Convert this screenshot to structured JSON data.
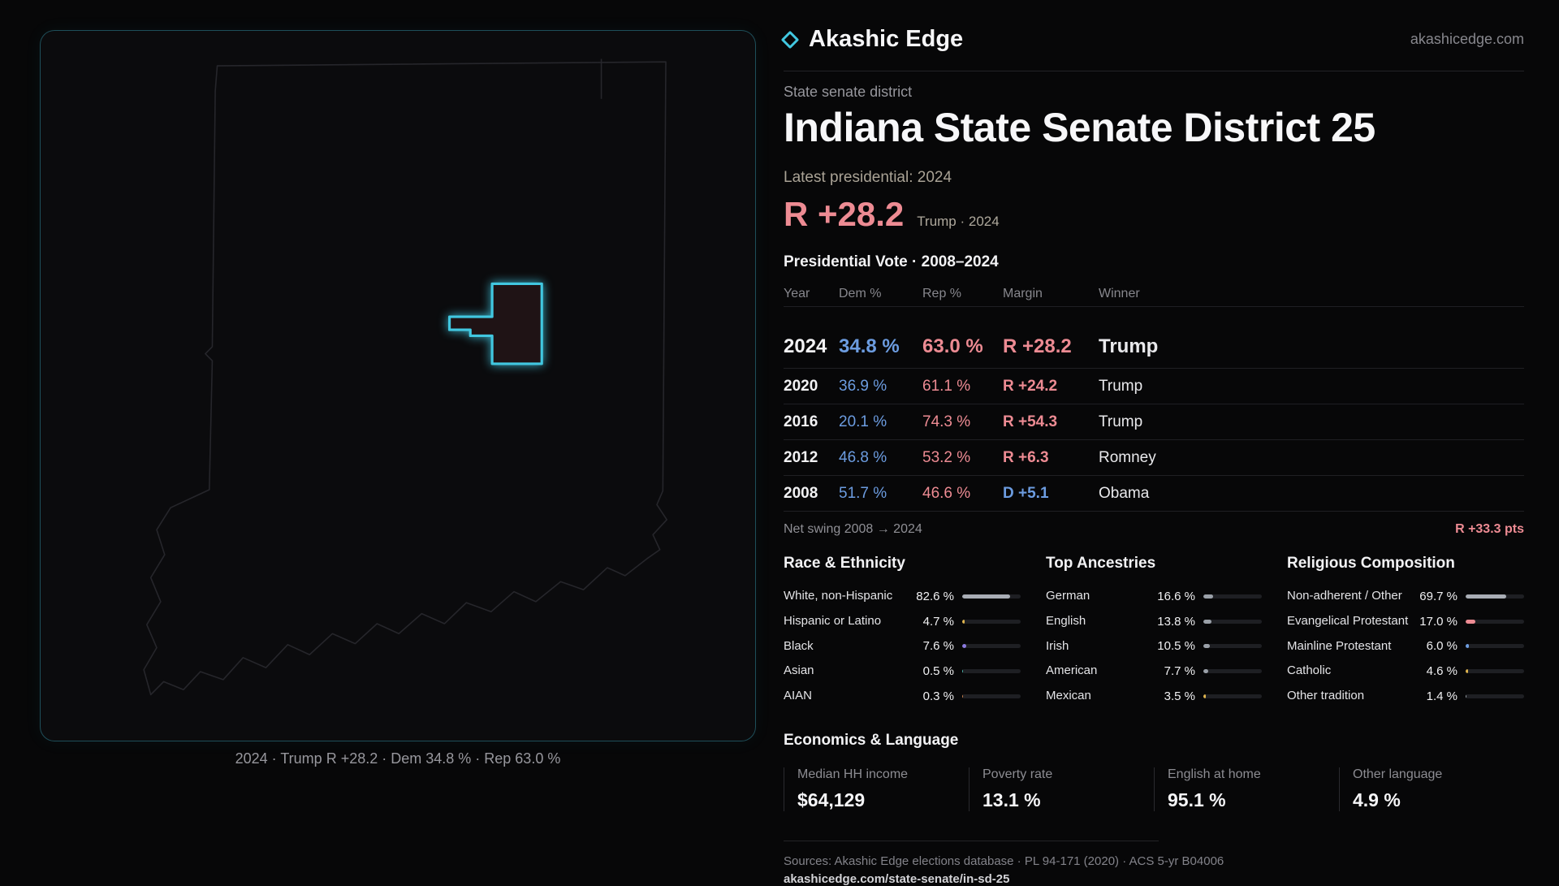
{
  "colors": {
    "accent": "#41c7e0",
    "dem": "#6c9ce0",
    "rep": "#ed8b93"
  },
  "header": {
    "brand": "Akashic Edge",
    "site": "akashicedge.com"
  },
  "map": {
    "caption": "2024 · Trump R +28.2 · Dem 34.8 % · Rep 63.0 %"
  },
  "overview": {
    "kicker": "State senate district",
    "title": "Indiana State Senate District 25",
    "latest_label": "Latest presidential: 2024",
    "margin_big": "R +28.2",
    "margin_note": "Trump · 2024"
  },
  "vote_table": {
    "title": "Presidential Vote · 2008–2024",
    "columns": [
      "Year",
      "Dem %",
      "Rep %",
      "Margin",
      "Winner"
    ],
    "rows": [
      {
        "year": "2024",
        "dem": "34.8 %",
        "rep": "63.0 %",
        "margin": "R +28.2",
        "winner": "Trump",
        "party": "R",
        "latest": true
      },
      {
        "year": "2020",
        "dem": "36.9 %",
        "rep": "61.1 %",
        "margin": "R +24.2",
        "winner": "Trump",
        "party": "R",
        "latest": false
      },
      {
        "year": "2016",
        "dem": "20.1 %",
        "rep": "74.3 %",
        "margin": "R +54.3",
        "winner": "Trump",
        "party": "R",
        "latest": false
      },
      {
        "year": "2012",
        "dem": "46.8 %",
        "rep": "53.2 %",
        "margin": "R +6.3",
        "winner": "Romney",
        "party": "R",
        "latest": false
      },
      {
        "year": "2008",
        "dem": "51.7 %",
        "rep": "46.6 %",
        "margin": "D +5.1",
        "winner": "Obama",
        "party": "D",
        "latest": false
      }
    ],
    "net_swing_label": "Net swing 2008 → 2024",
    "net_swing_value": "R +33.3 pts"
  },
  "demographics": [
    {
      "title": "Race & Ethnicity",
      "rows": [
        {
          "label": "White, non-Hispanic",
          "value": "82.6 %",
          "pct": 82.6,
          "color": "#a9adb5"
        },
        {
          "label": "Hispanic or Latino",
          "value": "4.7 %",
          "pct": 4.7,
          "color": "#dfb44e"
        },
        {
          "label": "Black",
          "value": "7.6 %",
          "pct": 7.6,
          "color": "#8b7ae0"
        },
        {
          "label": "Asian",
          "value": "0.5 %",
          "pct": 0.5,
          "color": "#4db6ac"
        },
        {
          "label": "AIAN",
          "value": "0.3 %",
          "pct": 0.3,
          "color": "#c9804a"
        }
      ]
    },
    {
      "title": "Top Ancestries",
      "rows": [
        {
          "label": "German",
          "value": "16.6 %",
          "pct": 16.6,
          "color": "#9aa0a8"
        },
        {
          "label": "English",
          "value": "13.8 %",
          "pct": 13.8,
          "color": "#9aa0a8"
        },
        {
          "label": "Irish",
          "value": "10.5 %",
          "pct": 10.5,
          "color": "#9aa0a8"
        },
        {
          "label": "American",
          "value": "7.7 %",
          "pct": 7.7,
          "color": "#9aa0a8"
        },
        {
          "label": "Mexican",
          "value": "3.5 %",
          "pct": 3.5,
          "color": "#dfb44e"
        }
      ]
    },
    {
      "title": "Religious Composition",
      "rows": [
        {
          "label": "Non-adherent / Other",
          "value": "69.7 %",
          "pct": 69.7,
          "color": "#a9adb5"
        },
        {
          "label": "Evangelical Protestant",
          "value": "17.0 %",
          "pct": 17.0,
          "color": "#ed8b93"
        },
        {
          "label": "Mainline Protestant",
          "value": "6.0 %",
          "pct": 6.0,
          "color": "#6c9ce0"
        },
        {
          "label": "Catholic",
          "value": "4.6 %",
          "pct": 4.6,
          "color": "#dfb44e"
        },
        {
          "label": "Other tradition",
          "value": "1.4 %",
          "pct": 1.4,
          "color": "#9aa0a8"
        }
      ]
    }
  ],
  "economics": {
    "title": "Economics & Language",
    "stats": [
      {
        "label": "Median HH income",
        "value": "$64,129"
      },
      {
        "label": "Poverty rate",
        "value": "13.1 %"
      },
      {
        "label": "English at home",
        "value": "95.1 %"
      },
      {
        "label": "Other language",
        "value": "4.9 %"
      }
    ]
  },
  "footer": {
    "sources": "Sources: Akashic Edge elections database · PL 94-171 (2020) · ACS 5-yr B04006",
    "permalink": "akashicedge.com/state-senate/in-sd-25"
  }
}
